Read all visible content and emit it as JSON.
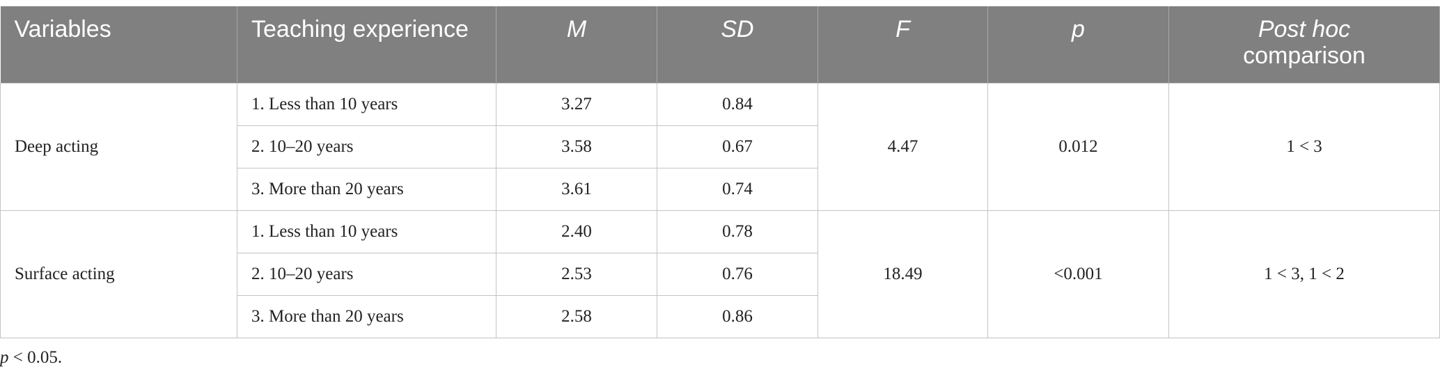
{
  "header": {
    "columns": [
      "Variables",
      "Teaching experience",
      "M",
      "SD",
      "F",
      "p",
      [
        "Post hoc",
        "comparison"
      ]
    ]
  },
  "groups": [
    {
      "variable": "Deep acting",
      "F": "4.47",
      "p": "0.012",
      "post_hoc": "1 < 3",
      "rows": [
        [
          "1. Less than 10 years",
          "3.27",
          "0.84"
        ],
        [
          "2. 10–20 years",
          "3.58",
          "0.67"
        ],
        [
          "3. More than 20 years",
          "3.61",
          "0.74"
        ]
      ]
    },
    {
      "variable": "Surface acting",
      "F": "18.49",
      "p": "<0.001",
      "post_hoc": "1 < 3, 1 < 2",
      "rows": [
        [
          "1. Less than 10 years",
          "2.40",
          "0.78"
        ],
        [
          "2. 10–20 years",
          "2.53",
          "0.76"
        ],
        [
          "3. More than 20 years",
          "2.58",
          "0.86"
        ]
      ]
    }
  ],
  "footnote": {
    "symbol": "p",
    "text": "< 0.05."
  }
}
